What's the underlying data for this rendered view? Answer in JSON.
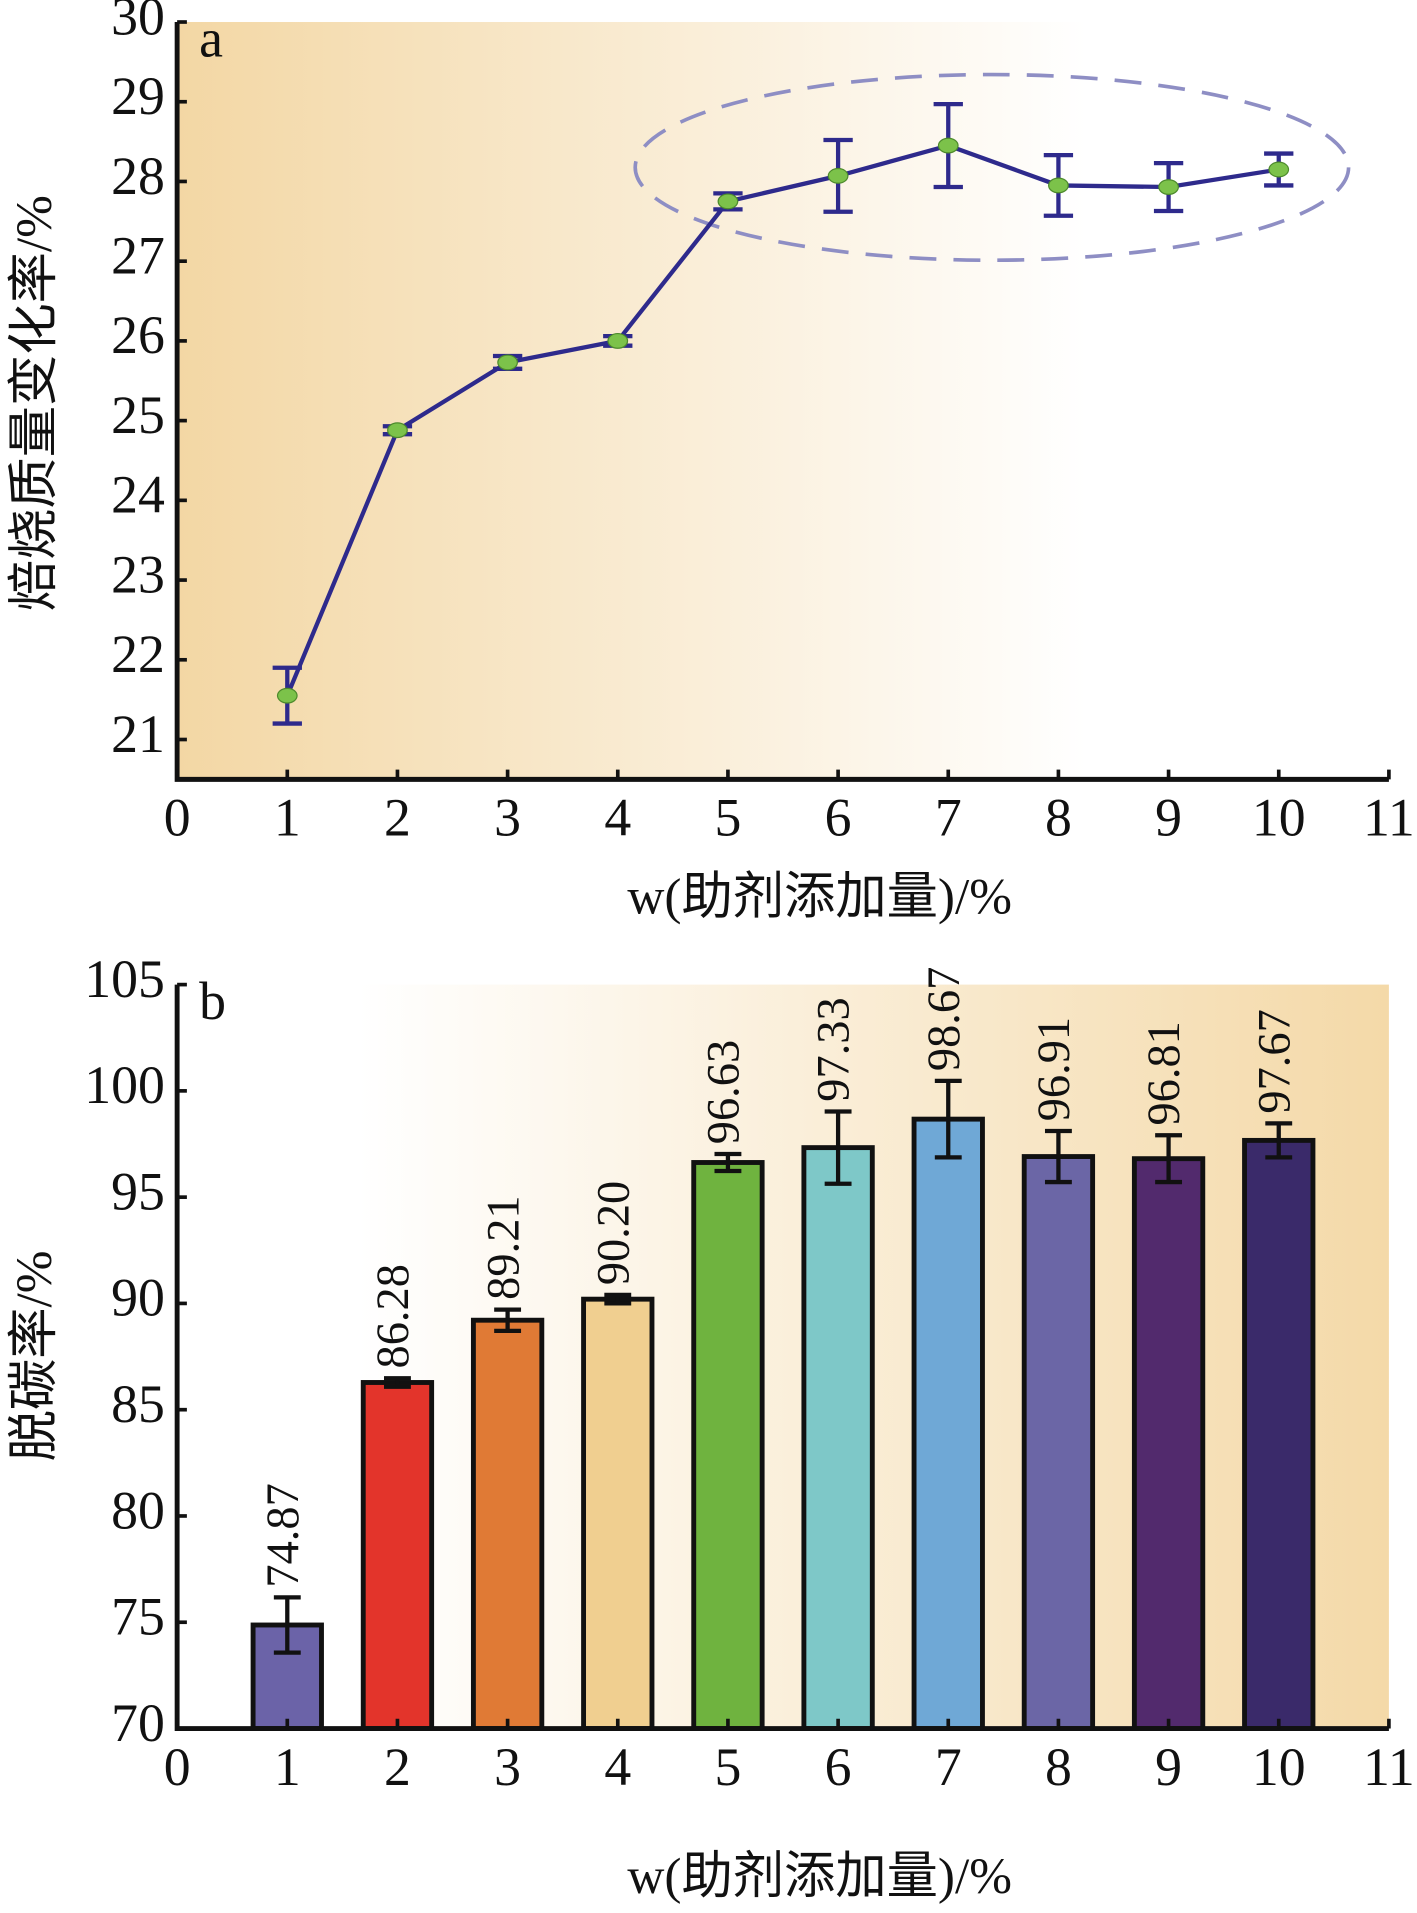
{
  "chart_data": [
    {
      "type": "line",
      "panel": "a",
      "y_label": "焙烧质量变化率/%",
      "x_label": "w(助剂添加量)/%",
      "x": [
        1,
        2,
        3,
        4,
        5,
        6,
        7,
        8,
        9,
        10
      ],
      "values": [
        21.55,
        24.88,
        25.73,
        26.0,
        27.75,
        28.07,
        28.45,
        27.95,
        27.93,
        28.15
      ],
      "errors": [
        0.35,
        0.05,
        0.08,
        0.06,
        0.1,
        0.45,
        0.52,
        0.38,
        0.3,
        0.2
      ],
      "color": "#2e2a8c",
      "marker_color": "#7cc24a",
      "xlim": [
        0,
        11
      ],
      "xticks": [
        0,
        1,
        2,
        3,
        4,
        5,
        6,
        7,
        8,
        9,
        10,
        11
      ],
      "ylim": [
        20.5,
        30
      ],
      "yticks": [
        21,
        22,
        23,
        24,
        25,
        26,
        27,
        28,
        29,
        30
      ]
    },
    {
      "type": "bar",
      "panel": "b",
      "y_label": "脱碳率/%",
      "x_label": "w(助剂添加量)/%",
      "x": [
        1,
        2,
        3,
        4,
        5,
        6,
        7,
        8,
        9,
        10
      ],
      "values": [
        74.87,
        86.28,
        89.21,
        90.2,
        96.63,
        97.33,
        98.67,
        96.91,
        96.81,
        97.67
      ],
      "value_labels": [
        "74.87",
        "86.28",
        "89.21",
        "90.20",
        "96.63",
        "97.33",
        "98.67",
        "96.91",
        "96.81",
        "97.67"
      ],
      "errors": [
        1.3,
        0.2,
        0.5,
        0.2,
        0.4,
        1.7,
        1.8,
        1.2,
        1.1,
        0.8
      ],
      "colors": [
        "#6b63a8",
        "#e3342b",
        "#e07a35",
        "#f0cf90",
        "#6fb33f",
        "#7ec8c8",
        "#6fa8d6",
        "#6b66a6",
        "#522a6d",
        "#3a2a6a"
      ],
      "xlim": [
        0,
        11
      ],
      "xticks": [
        0,
        1,
        2,
        3,
        4,
        5,
        6,
        7,
        8,
        9,
        10,
        11
      ],
      "ylim": [
        70,
        105
      ],
      "yticks": [
        70,
        75,
        80,
        85,
        90,
        95,
        100,
        105
      ]
    }
  ]
}
